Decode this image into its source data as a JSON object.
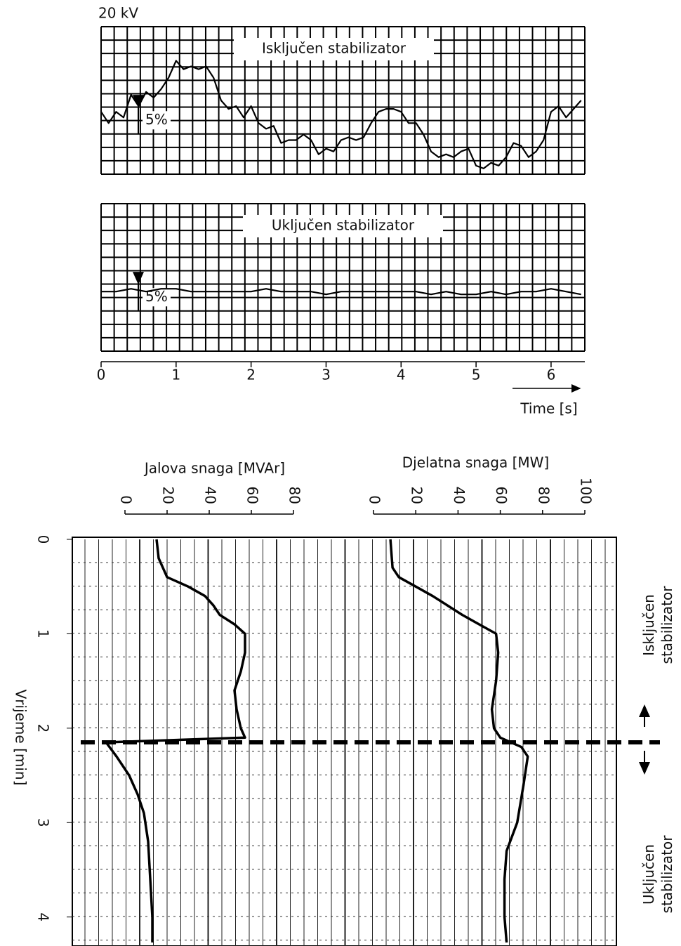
{
  "chart_data": [
    {
      "type": "line",
      "annotation": "20 kV",
      "title": "Isključen stabilizator",
      "scale_label": "5%",
      "scale_value": 5,
      "xlim": [
        0,
        6.45
      ],
      "ylim": [
        -13,
        13
      ],
      "x": [
        0,
        0.1,
        0.2,
        0.3,
        0.4,
        0.5,
        0.6,
        0.7,
        0.8,
        0.9,
        1.0,
        1.1,
        1.2,
        1.3,
        1.4,
        1.5,
        1.6,
        1.7,
        1.8,
        1.9,
        2.0,
        2.1,
        2.2,
        2.3,
        2.4,
        2.5,
        2.6,
        2.7,
        2.8,
        2.9,
        3.0,
        3.1,
        3.2,
        3.3,
        3.4,
        3.5,
        3.6,
        3.7,
        3.8,
        3.9,
        4.0,
        4.1,
        4.2,
        4.3,
        4.4,
        4.5,
        4.6,
        4.7,
        4.8,
        4.9,
        5.0,
        5.1,
        5.2,
        5.3,
        5.4,
        5.5,
        5.6,
        5.7,
        5.8,
        5.9,
        6.0,
        6.1,
        6.2,
        6.3,
        6.4
      ],
      "values": [
        -2,
        -4,
        -2,
        -3,
        1,
        -1,
        1.5,
        0.5,
        2,
        4,
        7,
        5.5,
        6,
        5.5,
        6,
        4,
        0,
        -1.5,
        -1,
        -3,
        -1,
        -4,
        -5,
        -4.5,
        -7.5,
        -7,
        -7,
        -6,
        -7,
        -9.5,
        -8.5,
        -9,
        -7,
        -6.5,
        -7,
        -6.5,
        -4,
        -2,
        -1.5,
        -1.5,
        -2,
        -4,
        -4,
        -6,
        -9,
        -10,
        -9.5,
        -10,
        -9,
        -8.5,
        -11.5,
        -12,
        -11,
        -11.5,
        -10,
        -7.5,
        -8,
        -10,
        -9,
        -7,
        -2,
        -1,
        -3,
        -1.5,
        0
      ],
      "color": "#000000"
    },
    {
      "type": "line",
      "title": "Uključen stabilizator",
      "scale_label": "5%",
      "scale_value": 5,
      "xlim": [
        0,
        6.45
      ],
      "ylim": [
        -13,
        13
      ],
      "xticks": [
        0,
        1,
        2,
        3,
        4,
        5,
        6
      ],
      "x_label": "Time [s]",
      "x": [
        0,
        0.2,
        0.4,
        0.6,
        0.8,
        1.0,
        1.2,
        1.4,
        1.6,
        1.8,
        2.0,
        2.2,
        2.4,
        2.6,
        2.8,
        3.0,
        3.2,
        3.4,
        3.6,
        3.8,
        4.0,
        4.2,
        4.4,
        4.6,
        4.8,
        5.0,
        5.2,
        5.4,
        5.6,
        5.8,
        6.0,
        6.2,
        6.4
      ],
      "values": [
        -2.5,
        -2.5,
        -2,
        -2.5,
        -2,
        -2,
        -2.5,
        -2.5,
        -2.5,
        -2.5,
        -2.5,
        -2,
        -2.5,
        -2.5,
        -2.5,
        -3,
        -2.5,
        -2.5,
        -2.5,
        -2.5,
        -2.5,
        -2.5,
        -3,
        -2.5,
        -3,
        -3,
        -2.5,
        -3,
        -2.5,
        -2.5,
        -2,
        -2.5,
        -3
      ],
      "color": "#000000"
    },
    {
      "type": "vertical-line",
      "y_label": "Vrijeme [min]",
      "ylim": [
        0,
        4.27
      ],
      "yticks": [
        0,
        1,
        2,
        3,
        4
      ],
      "axes": [
        {
          "label": "Jalova snaga [MVAr]",
          "lim": [
            0,
            80
          ],
          "ticks": [
            0,
            20,
            40,
            60,
            80
          ]
        },
        {
          "label": "Djelatna snaga [MW]",
          "lim": [
            0,
            100
          ],
          "ticks": [
            0,
            20,
            40,
            60,
            80,
            100
          ]
        }
      ],
      "switch_time": 2.15,
      "annotations": [
        [
          "Isključen",
          "stabilizator"
        ],
        [
          "Uključen",
          "stabilizator"
        ]
      ],
      "series": [
        {
          "axis": 0,
          "color": "#000000",
          "t": [
            0,
            0.2,
            0.4,
            0.5,
            0.6,
            0.7,
            0.8,
            0.9,
            1.0,
            1.2,
            1.4,
            1.6,
            1.8,
            2.0,
            2.1,
            2.15,
            2.3,
            2.5,
            2.7,
            2.9,
            3.2,
            3.6,
            4.0,
            4.27
          ],
          "values": [
            15,
            16,
            20,
            30,
            38,
            42,
            45,
            52,
            57,
            57,
            55,
            52,
            53,
            55,
            57,
            -9,
            -4,
            2,
            6,
            9,
            11,
            12,
            13,
            13
          ]
        },
        {
          "axis": 1,
          "color": "#000000",
          "t": [
            0,
            0.3,
            0.4,
            0.5,
            0.6,
            0.7,
            0.8,
            0.9,
            1.0,
            1.2,
            1.5,
            1.8,
            2.0,
            2.1,
            2.2,
            2.3,
            2.6,
            3.0,
            3.3,
            3.6,
            4.0,
            4.27
          ],
          "values": [
            8,
            9,
            12,
            20,
            28,
            35,
            42,
            50,
            58,
            59,
            58,
            56,
            57,
            60,
            70,
            73,
            71,
            68,
            63,
            62,
            62,
            63
          ]
        }
      ]
    }
  ]
}
